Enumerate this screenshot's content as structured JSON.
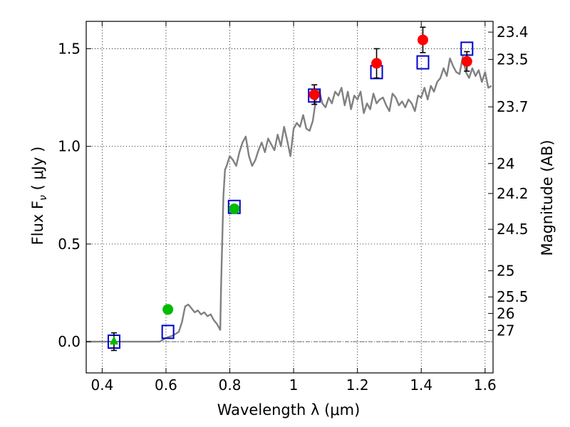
{
  "chart_data": {
    "type": "scatter",
    "xlabel": "Wavelength  λ (μm)",
    "ylabel": "Flux  F",
    "ylabel_sub": "ν",
    "ylabel_unit": " ( μJy )",
    "y2label": "Magnitude (AB)",
    "xlim": [
      0.35,
      1.625
    ],
    "ylim": [
      -0.16,
      1.64
    ],
    "grid": true,
    "x_ticks": [
      0.4,
      0.6,
      0.8,
      1.0,
      1.2,
      1.4,
      1.6
    ],
    "x_tick_labels": [
      "0.4",
      "0.6",
      "0.8",
      "1",
      "1.2",
      "1.4",
      "1.6"
    ],
    "y_ticks": [
      0.0,
      0.5,
      1.0,
      1.5
    ],
    "y_tick_labels": [
      "0.0",
      "0.5",
      "1.0",
      "1.5"
    ],
    "mag_ticks": [
      "23.4",
      "23.5",
      "23.7",
      "24",
      "24.2",
      "24.5",
      "25",
      "25.5",
      "26",
      "27"
    ],
    "colors": {
      "spectrum": "#808080",
      "model": "#0000cc",
      "green": "#00bb00",
      "red": "#ff0000",
      "errorbar": "#000000",
      "zero_line": "#666666"
    },
    "series": [
      {
        "marker": "line",
        "x": [
          0.35,
          0.4,
          0.45,
          0.5,
          0.55,
          0.58,
          0.6,
          0.62,
          0.64,
          0.65,
          0.66,
          0.67,
          0.68,
          0.69,
          0.7,
          0.71,
          0.72,
          0.73,
          0.74,
          0.75,
          0.76,
          0.77,
          0.773,
          0.78,
          0.785,
          0.79,
          0.8,
          0.81,
          0.82,
          0.83,
          0.84,
          0.85,
          0.86,
          0.87,
          0.88,
          0.89,
          0.9,
          0.91,
          0.92,
          0.93,
          0.94,
          0.95,
          0.96,
          0.97,
          0.98,
          0.99,
          1.0,
          1.01,
          1.02,
          1.03,
          1.04,
          1.05,
          1.06,
          1.07,
          1.08,
          1.09,
          1.1,
          1.11,
          1.12,
          1.13,
          1.14,
          1.15,
          1.16,
          1.17,
          1.18,
          1.19,
          1.2,
          1.21,
          1.22,
          1.23,
          1.24,
          1.25,
          1.26,
          1.27,
          1.28,
          1.29,
          1.3,
          1.31,
          1.32,
          1.33,
          1.34,
          1.35,
          1.36,
          1.37,
          1.38,
          1.39,
          1.4,
          1.41,
          1.42,
          1.43,
          1.44,
          1.45,
          1.46,
          1.47,
          1.48,
          1.49,
          1.5,
          1.51,
          1.52,
          1.53,
          1.54,
          1.55,
          1.56,
          1.57,
          1.58,
          1.59,
          1.6,
          1.61,
          1.62
        ],
        "y": [
          0.0,
          0.0,
          0.0,
          0.0,
          0.0,
          0.0,
          0.02,
          0.03,
          0.05,
          0.1,
          0.18,
          0.19,
          0.17,
          0.15,
          0.16,
          0.14,
          0.15,
          0.13,
          0.14,
          0.11,
          0.09,
          0.06,
          0.3,
          0.75,
          0.88,
          0.9,
          0.95,
          0.93,
          0.9,
          0.97,
          1.02,
          1.05,
          0.95,
          0.9,
          0.93,
          0.98,
          1.02,
          0.97,
          1.04,
          1.01,
          0.98,
          1.06,
          1.0,
          1.1,
          1.03,
          0.95,
          1.09,
          1.12,
          1.1,
          1.16,
          1.09,
          1.08,
          1.13,
          1.24,
          1.29,
          1.22,
          1.2,
          1.25,
          1.22,
          1.28,
          1.26,
          1.3,
          1.21,
          1.28,
          1.19,
          1.26,
          1.24,
          1.28,
          1.17,
          1.22,
          1.19,
          1.27,
          1.22,
          1.24,
          1.25,
          1.21,
          1.18,
          1.27,
          1.25,
          1.21,
          1.23,
          1.2,
          1.24,
          1.22,
          1.18,
          1.26,
          1.25,
          1.3,
          1.24,
          1.31,
          1.28,
          1.33,
          1.35,
          1.4,
          1.36,
          1.45,
          1.41,
          1.38,
          1.37,
          1.46,
          1.38,
          1.35,
          1.4,
          1.36,
          1.39,
          1.33,
          1.38,
          1.3,
          1.31
        ]
      },
      {
        "marker": "open-square",
        "x": [
          0.437,
          0.606,
          0.814,
          1.065,
          1.26,
          1.405,
          1.543
        ],
        "y": [
          0.0,
          0.05,
          0.69,
          1.26,
          1.38,
          1.43,
          1.5
        ]
      },
      {
        "marker": "green-circle",
        "x": [
          0.606,
          0.814
        ],
        "y": [
          0.165,
          0.68
        ],
        "err": [
          0.02,
          0.02
        ]
      },
      {
        "marker": "green-triangle",
        "x": [
          0.437
        ],
        "y": [
          0.0
        ],
        "err": [
          0.045
        ]
      },
      {
        "marker": "red-circle",
        "x": [
          1.065,
          1.26,
          1.405,
          1.543
        ],
        "y": [
          1.265,
          1.425,
          1.545,
          1.435
        ],
        "err": [
          0.05,
          0.075,
          0.065,
          0.05
        ]
      }
    ]
  }
}
